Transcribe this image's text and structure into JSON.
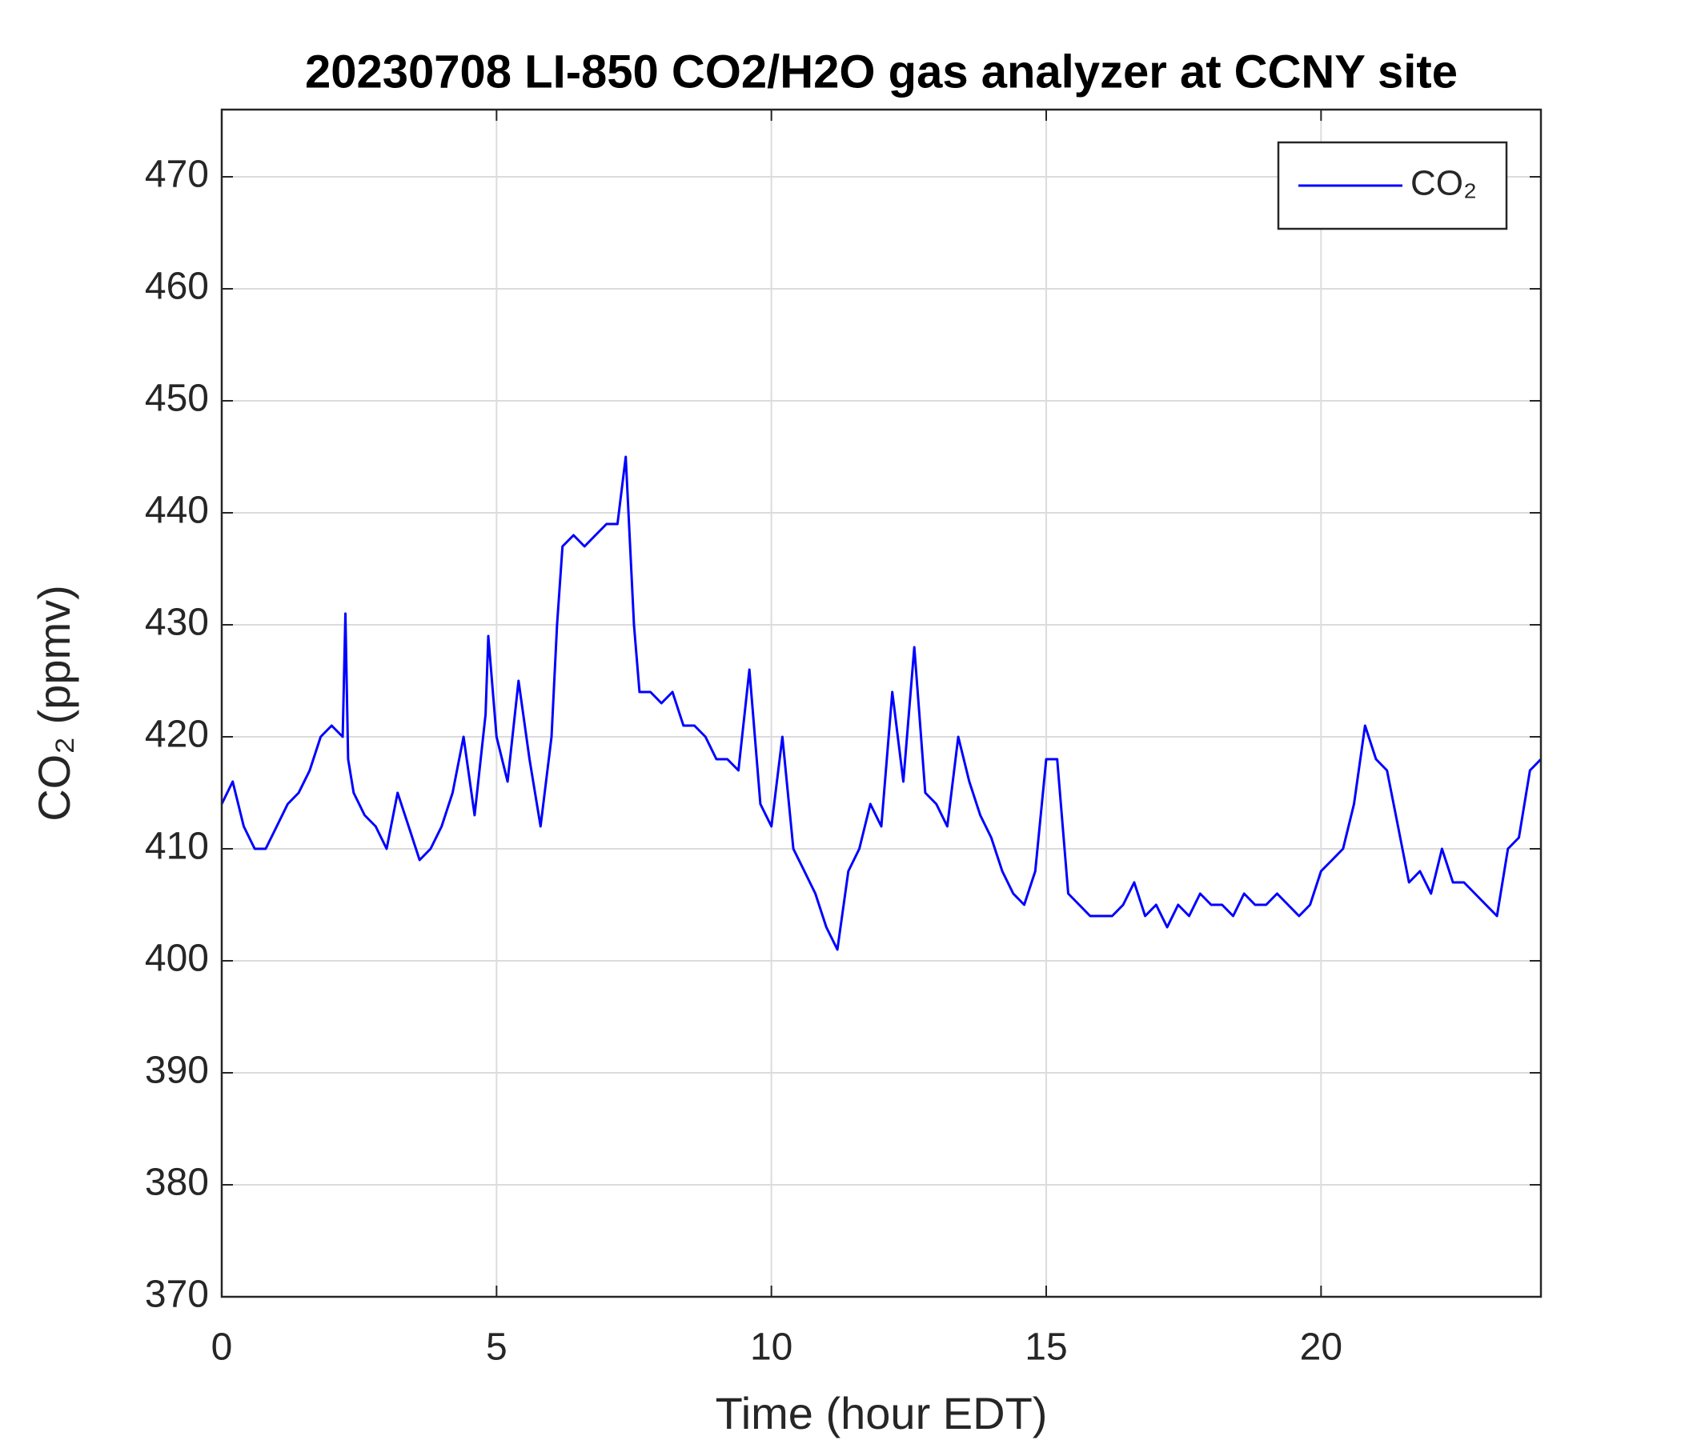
{
  "chart_data": {
    "type": "line",
    "title": "20230708 LI-850 CO2/H2O gas analyzer at CCNY site",
    "xlabel": "Time (hour EDT)",
    "ylabel": "CO₂ (ppmv)",
    "x": [
      0,
      0.2,
      0.4,
      0.6,
      0.8,
      1.0,
      1.2,
      1.4,
      1.6,
      1.8,
      2.0,
      2.2,
      2.25,
      2.3,
      2.4,
      2.6,
      2.8,
      3.0,
      3.2,
      3.4,
      3.6,
      3.8,
      4.0,
      4.2,
      4.4,
      4.6,
      4.8,
      4.85,
      5.0,
      5.2,
      5.4,
      5.6,
      5.8,
      6.0,
      6.1,
      6.2,
      6.4,
      6.6,
      6.8,
      7.0,
      7.2,
      7.35,
      7.5,
      7.6,
      7.8,
      8.0,
      8.2,
      8.4,
      8.6,
      8.8,
      9.0,
      9.2,
      9.4,
      9.6,
      9.8,
      10.0,
      10.2,
      10.4,
      10.6,
      10.8,
      11.0,
      11.2,
      11.4,
      11.6,
      11.8,
      12.0,
      12.2,
      12.4,
      12.6,
      12.8,
      13.0,
      13.2,
      13.4,
      13.6,
      13.8,
      14.0,
      14.2,
      14.4,
      14.6,
      14.8,
      15.0,
      15.2,
      15.4,
      15.6,
      15.8,
      16.0,
      16.2,
      16.4,
      16.6,
      16.8,
      17.0,
      17.2,
      17.4,
      17.6,
      17.8,
      18.0,
      18.2,
      18.4,
      18.6,
      18.8,
      19.0,
      19.2,
      19.4,
      19.6,
      19.8,
      20.0,
      20.2,
      20.4,
      20.6,
      20.8,
      21.0,
      21.2,
      21.4,
      21.6,
      21.8,
      22.0,
      22.2,
      22.4,
      22.6,
      22.8,
      23.0,
      23.2,
      23.4,
      23.6,
      23.8,
      24.0
    ],
    "series": [
      {
        "name": "CO₂",
        "color": "#0000ff",
        "values": [
          414,
          416,
          412,
          410,
          410,
          412,
          414,
          415,
          417,
          420,
          421,
          420,
          431,
          418,
          415,
          413,
          412,
          410,
          415,
          412,
          409,
          410,
          412,
          415,
          420,
          413,
          422,
          429,
          420,
          416,
          425,
          418,
          412,
          420,
          430,
          437,
          438,
          437,
          438,
          439,
          439,
          445,
          430,
          424,
          424,
          423,
          424,
          421,
          421,
          420,
          418,
          418,
          417,
          426,
          414,
          412,
          420,
          410,
          408,
          406,
          403,
          401,
          408,
          410,
          414,
          412,
          424,
          416,
          428,
          415,
          414,
          412,
          420,
          416,
          413,
          411,
          408,
          406,
          405,
          408,
          418,
          418,
          406,
          405,
          404,
          404,
          404,
          405,
          407,
          404,
          405,
          403,
          405,
          404,
          406,
          405,
          405,
          404,
          406,
          405,
          405,
          406,
          405,
          404,
          405,
          408,
          409,
          410,
          414,
          421,
          418,
          417,
          412,
          407,
          408,
          406,
          410,
          407,
          407,
          406,
          405,
          404,
          410,
          411,
          417,
          418
        ]
      }
    ],
    "xlim": [
      0,
      24
    ],
    "xticks": [
      0,
      5,
      10,
      15,
      20
    ],
    "ylim": [
      370,
      476
    ],
    "yticks": [
      370,
      380,
      390,
      400,
      410,
      420,
      430,
      440,
      450,
      460,
      470
    ],
    "grid": true,
    "legend": "upper right"
  }
}
